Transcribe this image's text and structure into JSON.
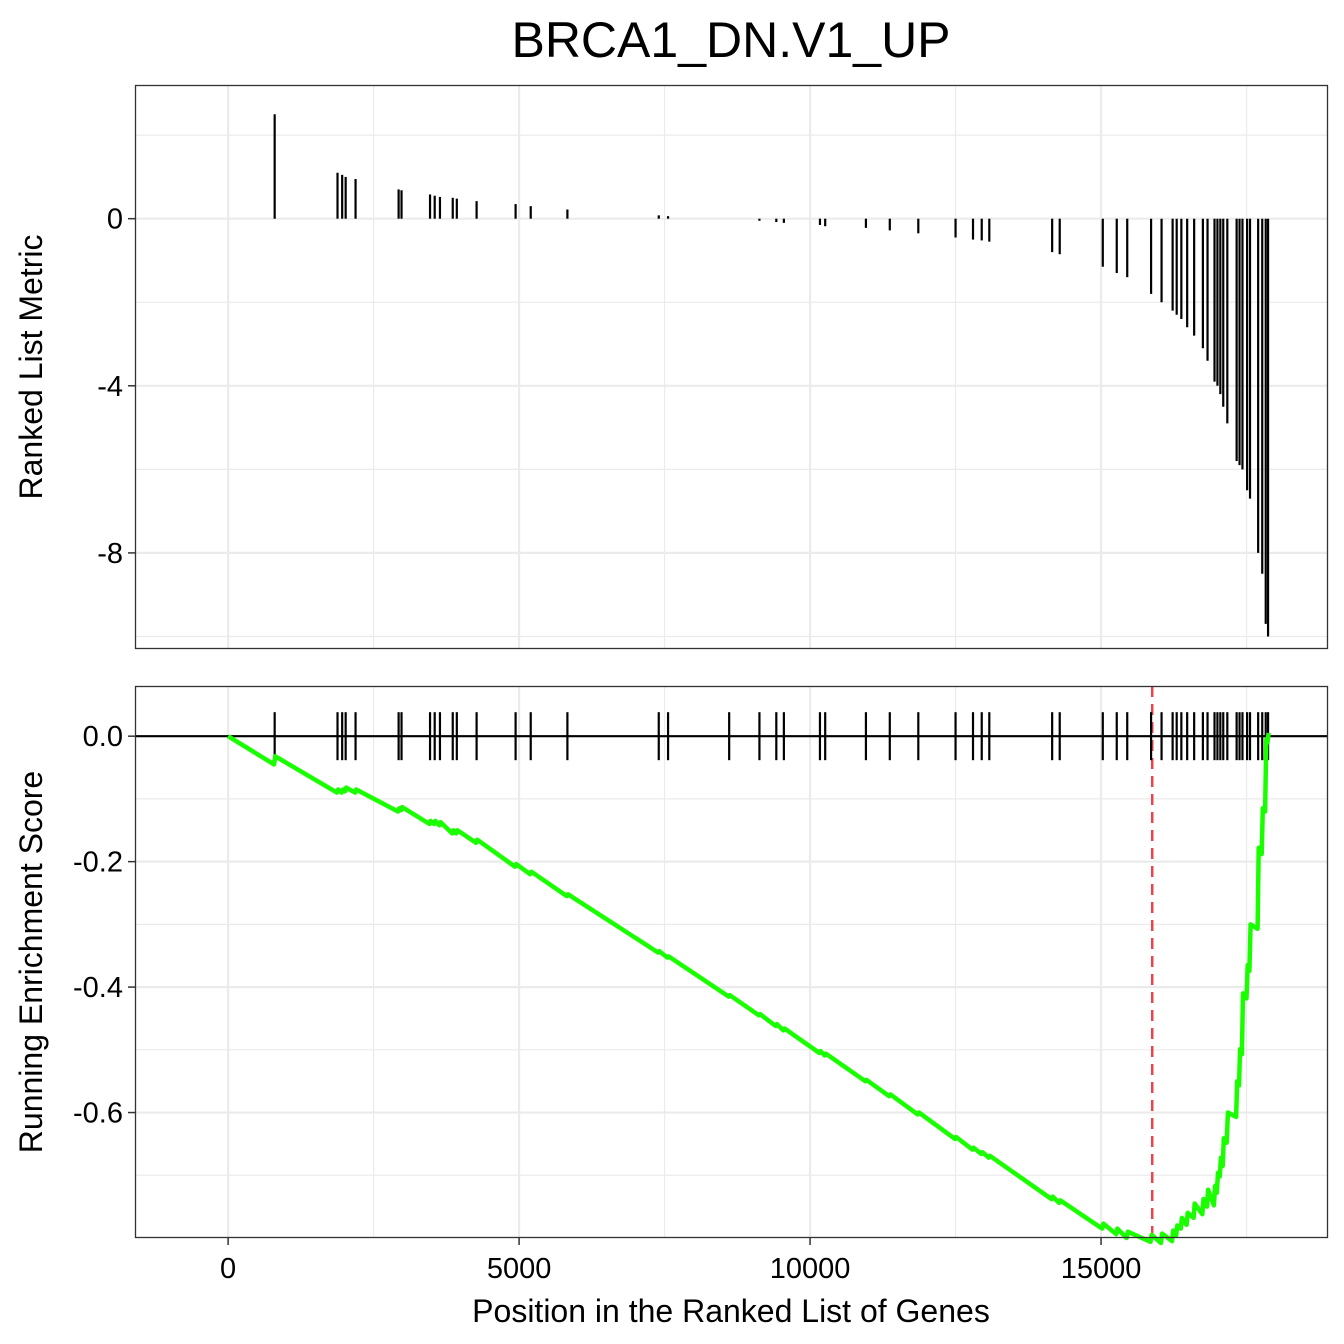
{
  "chart_data": {
    "type": "line",
    "title": "BRCA1_DN.V1_UP",
    "xlabel": "Position in the Ranked List of Genes",
    "xlim": [
      -1600,
      18900
    ],
    "x_ticks": [
      0,
      5000,
      10000,
      15000
    ],
    "x_tick_labels": [
      "0",
      "5000",
      "10000",
      "15000"
    ],
    "grid": true,
    "peak_position": 15880,
    "colors": {
      "es_line": "#1aff00",
      "peak_line": "#e8464f",
      "bars": "#000000"
    },
    "panels": [
      {
        "name": "ranked-list-metric",
        "ylabel": "Ranked List Metric",
        "ylim": [
          -10.3,
          3.2
        ],
        "y_ticks": [
          0,
          -4,
          -8
        ],
        "y_tick_labels": [
          "0",
          "-4",
          "-8"
        ],
        "bars": [
          {
            "x": 800,
            "y": 2.5
          },
          {
            "x": 1880,
            "y": 1.1
          },
          {
            "x": 1960,
            "y": 1.05
          },
          {
            "x": 2020,
            "y": 1.0
          },
          {
            "x": 2190,
            "y": 0.95
          },
          {
            "x": 2930,
            "y": 0.7
          },
          {
            "x": 2980,
            "y": 0.68
          },
          {
            "x": 3470,
            "y": 0.58
          },
          {
            "x": 3550,
            "y": 0.55
          },
          {
            "x": 3640,
            "y": 0.52
          },
          {
            "x": 3860,
            "y": 0.5
          },
          {
            "x": 3930,
            "y": 0.48
          },
          {
            "x": 4270,
            "y": 0.42
          },
          {
            "x": 4940,
            "y": 0.35
          },
          {
            "x": 5200,
            "y": 0.3
          },
          {
            "x": 5830,
            "y": 0.22
          },
          {
            "x": 7400,
            "y": 0.08
          },
          {
            "x": 7560,
            "y": 0.06
          },
          {
            "x": 9130,
            "y": -0.05
          },
          {
            "x": 9420,
            "y": -0.08
          },
          {
            "x": 9550,
            "y": -0.1
          },
          {
            "x": 10170,
            "y": -0.15
          },
          {
            "x": 10260,
            "y": -0.18
          },
          {
            "x": 10960,
            "y": -0.22
          },
          {
            "x": 11370,
            "y": -0.28
          },
          {
            "x": 11860,
            "y": -0.35
          },
          {
            "x": 12500,
            "y": -0.45
          },
          {
            "x": 12800,
            "y": -0.5
          },
          {
            "x": 12950,
            "y": -0.52
          },
          {
            "x": 13080,
            "y": -0.55
          },
          {
            "x": 14160,
            "y": -0.8
          },
          {
            "x": 14290,
            "y": -0.85
          },
          {
            "x": 15030,
            "y": -1.15
          },
          {
            "x": 15270,
            "y": -1.3
          },
          {
            "x": 15450,
            "y": -1.4
          },
          {
            "x": 15860,
            "y": -1.8
          },
          {
            "x": 16040,
            "y": -2.0
          },
          {
            "x": 16230,
            "y": -2.2
          },
          {
            "x": 16300,
            "y": -2.3
          },
          {
            "x": 16380,
            "y": -2.4
          },
          {
            "x": 16480,
            "y": -2.6
          },
          {
            "x": 16600,
            "y": -2.8
          },
          {
            "x": 16750,
            "y": -3.1
          },
          {
            "x": 16830,
            "y": -3.4
          },
          {
            "x": 16950,
            "y": -3.9
          },
          {
            "x": 17000,
            "y": -4.0
          },
          {
            "x": 17050,
            "y": -4.2
          },
          {
            "x": 17100,
            "y": -4.5
          },
          {
            "x": 17170,
            "y": -4.9
          },
          {
            "x": 17330,
            "y": -5.8
          },
          {
            "x": 17380,
            "y": -5.9
          },
          {
            "x": 17430,
            "y": -6.0
          },
          {
            "x": 17510,
            "y": -6.5
          },
          {
            "x": 17560,
            "y": -6.7
          },
          {
            "x": 17700,
            "y": -8.0
          },
          {
            "x": 17770,
            "y": -8.5
          },
          {
            "x": 17830,
            "y": -9.7
          },
          {
            "x": 17870,
            "y": -10.0
          }
        ]
      },
      {
        "name": "running-enrichment-score",
        "ylabel": "Running Enrichment Score",
        "ylim": [
          -0.8,
          0.08
        ],
        "y_ticks": [
          0.0,
          -0.2,
          -0.4,
          -0.6
        ],
        "y_tick_labels": [
          "0.0",
          "-0.2",
          "-0.4",
          "-0.6"
        ],
        "hits": [
          800,
          1880,
          1960,
          2020,
          2190,
          2930,
          2980,
          3470,
          3550,
          3640,
          3860,
          3930,
          4270,
          4940,
          5200,
          5830,
          7400,
          7560,
          8610,
          9130,
          9420,
          9550,
          10170,
          10260,
          10960,
          11370,
          11860,
          12500,
          12800,
          12950,
          13080,
          14160,
          14290,
          15030,
          15270,
          15450,
          15860,
          16040,
          16230,
          16300,
          16380,
          16480,
          16600,
          16750,
          16830,
          16950,
          17000,
          17050,
          17100,
          17170,
          17330,
          17380,
          17430,
          17510,
          17560,
          17700,
          17770,
          17830,
          17870
        ],
        "series": [
          {
            "x": [
              0,
              790,
              810,
              1870,
              1890,
              1950,
              1970,
              2010,
              2030,
              2180,
              2200,
              2920,
              2940,
              2970,
              2990,
              3460,
              3480,
              3540,
              3560,
              3630,
              3650,
              3850,
              3870,
              3920,
              3940,
              4260,
              4280,
              4930,
              4950,
              5190,
              5210,
              5820,
              5840,
              7390,
              7410,
              7550,
              7570,
              8600,
              8620,
              9120,
              9140,
              9410,
              9430,
              9540,
              9560,
              10160,
              10180,
              10250,
              10270,
              10950,
              10970,
              11360,
              11380,
              11850,
              11870,
              12490,
              12510,
              12790,
              12810,
              12940,
              12960,
              13070,
              13090,
              14150,
              14170,
              14280,
              14300,
              15020,
              15040,
              15260,
              15280,
              15440,
              15460,
              15850,
              15870,
              16030,
              16050,
              16220,
              16240,
              16290,
              16310,
              16370,
              16390,
              16470,
              16490,
              16590,
              16610,
              16740,
              16760,
              16820,
              16840,
              16940,
              16960,
              16990,
              17010,
              17040,
              17060,
              17090,
              17110,
              17160,
              17180,
              17320,
              17340,
              17370,
              17390,
              17420,
              17440,
              17500,
              17520,
              17550,
              17570,
              17690,
              17710,
              17760,
              17780,
              17820,
              17840,
              17860,
              17880
            ],
            "y": [
              0.0,
              -0.045,
              -0.032,
              -0.09,
              -0.085,
              -0.09,
              -0.085,
              -0.088,
              -0.082,
              -0.09,
              -0.085,
              -0.12,
              -0.115,
              -0.118,
              -0.113,
              -0.14,
              -0.135,
              -0.14,
              -0.135,
              -0.142,
              -0.137,
              -0.155,
              -0.15,
              -0.155,
              -0.15,
              -0.17,
              -0.165,
              -0.208,
              -0.204,
              -0.22,
              -0.216,
              -0.255,
              -0.252,
              -0.345,
              -0.343,
              -0.353,
              -0.351,
              -0.415,
              -0.413,
              -0.445,
              -0.443,
              -0.462,
              -0.459,
              -0.469,
              -0.466,
              -0.505,
              -0.502,
              -0.509,
              -0.506,
              -0.55,
              -0.548,
              -0.574,
              -0.571,
              -0.603,
              -0.6,
              -0.642,
              -0.639,
              -0.659,
              -0.656,
              -0.666,
              -0.663,
              -0.672,
              -0.669,
              -0.738,
              -0.734,
              -0.744,
              -0.74,
              -0.785,
              -0.777,
              -0.794,
              -0.785,
              -0.8,
              -0.79,
              -0.806,
              -0.795,
              -0.808,
              -0.793,
              -0.805,
              -0.788,
              -0.796,
              -0.78,
              -0.785,
              -0.768,
              -0.779,
              -0.76,
              -0.768,
              -0.745,
              -0.762,
              -0.738,
              -0.75,
              -0.723,
              -0.748,
              -0.717,
              -0.728,
              -0.696,
              -0.702,
              -0.672,
              -0.685,
              -0.641,
              -0.648,
              -0.6,
              -0.607,
              -0.55,
              -0.557,
              -0.499,
              -0.507,
              -0.41,
              -0.418,
              -0.365,
              -0.374,
              -0.3,
              -0.307,
              -0.178,
              -0.188,
              -0.115,
              -0.12,
              -0.005,
              -0.01,
              0.005
            ]
          }
        ]
      }
    ]
  }
}
